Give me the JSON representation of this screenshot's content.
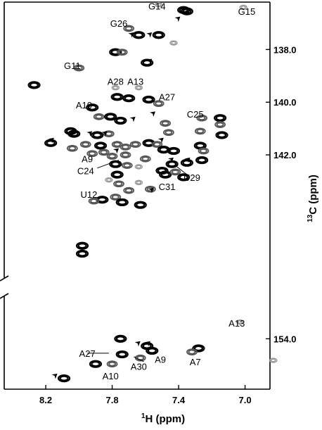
{
  "chart_data": {
    "type": "scatter",
    "title": "",
    "xlabel": {
      "sup": "1",
      "main": "H (ppm)"
    },
    "ylabel": {
      "sup": "13",
      "main": "C (ppm)"
    },
    "x_reversed": true,
    "xlim": [
      8.45,
      6.85
    ],
    "x_ticks": [
      "8.2",
      "7.8",
      "7.4",
      "7.0"
    ],
    "y_broken": true,
    "upper_panel": {
      "ylim": [
        136.2,
        146.7
      ],
      "y_ticks": [
        "138.0",
        "140.0",
        "142.0"
      ]
    },
    "lower_panel": {
      "ylim": [
        152.2,
        156.1
      ],
      "y_ticks": [
        "154.0"
      ]
    },
    "annotations": [
      {
        "text": "G14",
        "x": 7.53,
        "y": 136.35,
        "panel": "upper"
      },
      {
        "text": "G15",
        "x": 6.99,
        "y": 136.55,
        "panel": "upper"
      },
      {
        "text": "G26",
        "x": 7.76,
        "y": 137.0,
        "panel": "upper"
      },
      {
        "text": "G11",
        "x": 8.04,
        "y": 138.6,
        "panel": "upper"
      },
      {
        "text": "A28",
        "x": 7.78,
        "y": 139.2,
        "panel": "upper"
      },
      {
        "text": "A13",
        "x": 7.66,
        "y": 139.2,
        "panel": "upper"
      },
      {
        "text": "A27",
        "x": 7.47,
        "y": 139.8,
        "panel": "upper"
      },
      {
        "text": "A10",
        "x": 7.97,
        "y": 140.1,
        "panel": "upper"
      },
      {
        "text": "C25",
        "x": 7.3,
        "y": 140.45,
        "panel": "upper"
      },
      {
        "text": "A9",
        "x": 7.95,
        "y": 142.15,
        "panel": "upper"
      },
      {
        "text": "C24",
        "x": 7.96,
        "y": 142.6,
        "panel": "upper"
      },
      {
        "text": "U29",
        "x": 7.32,
        "y": 142.85,
        "panel": "upper"
      },
      {
        "text": "U12",
        "x": 7.94,
        "y": 143.5,
        "panel": "upper"
      },
      {
        "text": "C31",
        "x": 7.47,
        "y": 143.2,
        "panel": "upper"
      },
      {
        "text": "A13",
        "x": 7.05,
        "y": 153.35,
        "panel": "lower"
      },
      {
        "text": "A27",
        "x": 7.95,
        "y": 154.6,
        "panel": "lower"
      },
      {
        "text": "A9",
        "x": 7.51,
        "y": 154.85,
        "panel": "lower"
      },
      {
        "text": "A30",
        "x": 7.64,
        "y": 155.15,
        "panel": "lower"
      },
      {
        "text": "A7",
        "x": 7.3,
        "y": 154.95,
        "panel": "lower"
      },
      {
        "text": "A10",
        "x": 7.81,
        "y": 155.55,
        "panel": "lower"
      }
    ],
    "peaks": [
      {
        "x": 7.52,
        "y": 136.3,
        "panel": "upper",
        "intensity": "weak"
      },
      {
        "x": 7.37,
        "y": 136.5,
        "panel": "upper",
        "intensity": "strong"
      },
      {
        "x": 7.35,
        "y": 136.55,
        "panel": "upper",
        "intensity": "strong"
      },
      {
        "x": 7.01,
        "y": 136.4,
        "panel": "upper",
        "intensity": "weak"
      },
      {
        "x": 7.7,
        "y": 137.2,
        "panel": "upper",
        "intensity": "medium"
      },
      {
        "x": 7.64,
        "y": 137.45,
        "panel": "upper",
        "intensity": "strong"
      },
      {
        "x": 7.52,
        "y": 137.45,
        "panel": "upper",
        "intensity": "strong"
      },
      {
        "x": 7.43,
        "y": 137.75,
        "panel": "upper",
        "intensity": "weak"
      },
      {
        "x": 7.78,
        "y": 138.1,
        "panel": "upper",
        "intensity": "strong"
      },
      {
        "x": 7.74,
        "y": 138.1,
        "panel": "upper",
        "intensity": "medium"
      },
      {
        "x": 7.59,
        "y": 138.5,
        "panel": "upper",
        "intensity": "strong"
      },
      {
        "x": 8.0,
        "y": 138.7,
        "panel": "upper",
        "intensity": "medium"
      },
      {
        "x": 8.27,
        "y": 139.35,
        "panel": "upper",
        "intensity": "strong"
      },
      {
        "x": 7.78,
        "y": 139.45,
        "panel": "upper",
        "intensity": "weak"
      },
      {
        "x": 7.77,
        "y": 139.8,
        "panel": "upper",
        "intensity": "strong"
      },
      {
        "x": 7.7,
        "y": 139.85,
        "panel": "upper",
        "intensity": "strong"
      },
      {
        "x": 7.64,
        "y": 139.45,
        "panel": "upper",
        "intensity": "weak"
      },
      {
        "x": 7.58,
        "y": 139.9,
        "panel": "upper",
        "intensity": "strong"
      },
      {
        "x": 7.52,
        "y": 140.05,
        "panel": "upper",
        "intensity": "medium"
      },
      {
        "x": 7.92,
        "y": 140.2,
        "panel": "upper",
        "intensity": "strong"
      },
      {
        "x": 7.88,
        "y": 140.55,
        "panel": "upper",
        "intensity": "medium"
      },
      {
        "x": 7.81,
        "y": 140.55,
        "panel": "upper",
        "intensity": "strong"
      },
      {
        "x": 7.75,
        "y": 140.7,
        "panel": "upper",
        "intensity": "strong"
      },
      {
        "x": 7.48,
        "y": 140.8,
        "panel": "upper",
        "intensity": "medium"
      },
      {
        "x": 7.26,
        "y": 140.6,
        "panel": "upper",
        "intensity": "medium"
      },
      {
        "x": 7.15,
        "y": 140.6,
        "panel": "upper",
        "intensity": "strong"
      },
      {
        "x": 7.15,
        "y": 140.85,
        "panel": "upper",
        "intensity": "medium"
      },
      {
        "x": 8.05,
        "y": 141.1,
        "panel": "upper",
        "intensity": "strong"
      },
      {
        "x": 8.03,
        "y": 141.2,
        "panel": "upper",
        "intensity": "strong"
      },
      {
        "x": 7.89,
        "y": 141.25,
        "panel": "upper",
        "intensity": "strong"
      },
      {
        "x": 7.82,
        "y": 141.2,
        "panel": "upper",
        "intensity": "medium"
      },
      {
        "x": 7.46,
        "y": 141.15,
        "panel": "upper",
        "intensity": "medium"
      },
      {
        "x": 7.27,
        "y": 141.1,
        "panel": "upper",
        "intensity": "medium"
      },
      {
        "x": 7.14,
        "y": 141.25,
        "panel": "upper",
        "intensity": "strong"
      },
      {
        "x": 8.17,
        "y": 141.55,
        "panel": "upper",
        "intensity": "strong"
      },
      {
        "x": 8.04,
        "y": 141.75,
        "panel": "upper",
        "intensity": "medium"
      },
      {
        "x": 7.96,
        "y": 141.6,
        "panel": "upper",
        "intensity": "medium"
      },
      {
        "x": 7.87,
        "y": 141.65,
        "panel": "upper",
        "intensity": "strong"
      },
      {
        "x": 7.85,
        "y": 141.9,
        "panel": "upper",
        "intensity": "medium"
      },
      {
        "x": 7.77,
        "y": 141.6,
        "panel": "upper",
        "intensity": "medium"
      },
      {
        "x": 7.72,
        "y": 141.7,
        "panel": "upper",
        "intensity": "medium"
      },
      {
        "x": 7.66,
        "y": 141.6,
        "panel": "upper",
        "intensity": "medium"
      },
      {
        "x": 7.58,
        "y": 141.55,
        "panel": "upper",
        "intensity": "strong"
      },
      {
        "x": 7.53,
        "y": 141.6,
        "panel": "upper",
        "intensity": "medium"
      },
      {
        "x": 7.49,
        "y": 141.8,
        "panel": "upper",
        "intensity": "strong"
      },
      {
        "x": 7.43,
        "y": 141.85,
        "panel": "upper",
        "intensity": "strong"
      },
      {
        "x": 7.27,
        "y": 141.65,
        "panel": "upper",
        "intensity": "strong"
      },
      {
        "x": 7.25,
        "y": 141.85,
        "panel": "upper",
        "intensity": "medium"
      },
      {
        "x": 7.92,
        "y": 141.95,
        "panel": "upper",
        "intensity": "medium"
      },
      {
        "x": 7.8,
        "y": 142.05,
        "panel": "upper",
        "intensity": "medium"
      },
      {
        "x": 7.72,
        "y": 142.0,
        "panel": "upper",
        "intensity": "medium"
      },
      {
        "x": 7.6,
        "y": 142.15,
        "panel": "upper",
        "intensity": "medium"
      },
      {
        "x": 7.44,
        "y": 142.35,
        "panel": "upper",
        "intensity": "strong"
      },
      {
        "x": 7.35,
        "y": 142.3,
        "panel": "upper",
        "intensity": "strong"
      },
      {
        "x": 7.26,
        "y": 142.2,
        "panel": "upper",
        "intensity": "strong"
      },
      {
        "x": 7.78,
        "y": 142.35,
        "panel": "upper",
        "intensity": "strong"
      },
      {
        "x": 7.71,
        "y": 142.4,
        "panel": "upper",
        "intensity": "medium"
      },
      {
        "x": 7.64,
        "y": 142.45,
        "panel": "upper",
        "intensity": "weak"
      },
      {
        "x": 7.5,
        "y": 142.6,
        "panel": "upper",
        "intensity": "strong"
      },
      {
        "x": 7.48,
        "y": 142.75,
        "panel": "upper",
        "intensity": "strong"
      },
      {
        "x": 7.42,
        "y": 142.65,
        "panel": "upper",
        "intensity": "medium"
      },
      {
        "x": 7.37,
        "y": 142.85,
        "panel": "upper",
        "intensity": "strong"
      },
      {
        "x": 7.77,
        "y": 142.75,
        "panel": "upper",
        "intensity": "strong"
      },
      {
        "x": 7.82,
        "y": 142.95,
        "panel": "upper",
        "intensity": "weak"
      },
      {
        "x": 7.76,
        "y": 143.1,
        "panel": "upper",
        "intensity": "medium"
      },
      {
        "x": 7.64,
        "y": 143.05,
        "panel": "upper",
        "intensity": "weak"
      },
      {
        "x": 7.57,
        "y": 143.3,
        "panel": "upper",
        "intensity": "medium"
      },
      {
        "x": 7.7,
        "y": 143.35,
        "panel": "upper",
        "intensity": "medium"
      },
      {
        "x": 7.78,
        "y": 143.6,
        "panel": "upper",
        "intensity": "medium"
      },
      {
        "x": 7.86,
        "y": 143.7,
        "panel": "upper",
        "intensity": "strong"
      },
      {
        "x": 7.91,
        "y": 143.75,
        "panel": "upper",
        "intensity": "medium"
      },
      {
        "x": 7.74,
        "y": 143.8,
        "panel": "upper",
        "intensity": "strong"
      },
      {
        "x": 7.63,
        "y": 143.9,
        "panel": "upper",
        "intensity": "strong"
      },
      {
        "x": 7.98,
        "y": 145.45,
        "panel": "upper",
        "intensity": "strong"
      },
      {
        "x": 7.98,
        "y": 145.75,
        "panel": "upper",
        "intensity": "strong"
      },
      {
        "x": 7.03,
        "y": 153.3,
        "panel": "lower",
        "intensity": "weak"
      },
      {
        "x": 7.75,
        "y": 154.0,
        "panel": "lower",
        "intensity": "strong"
      },
      {
        "x": 7.59,
        "y": 154.3,
        "panel": "lower",
        "intensity": "strong"
      },
      {
        "x": 7.56,
        "y": 154.5,
        "panel": "lower",
        "intensity": "strong"
      },
      {
        "x": 7.28,
        "y": 154.4,
        "panel": "lower",
        "intensity": "strong"
      },
      {
        "x": 7.32,
        "y": 154.55,
        "panel": "lower",
        "intensity": "medium"
      },
      {
        "x": 7.74,
        "y": 154.65,
        "panel": "lower",
        "intensity": "strong"
      },
      {
        "x": 7.63,
        "y": 154.8,
        "panel": "lower",
        "intensity": "medium"
      },
      {
        "x": 7.9,
        "y": 155.05,
        "panel": "lower",
        "intensity": "strong"
      },
      {
        "x": 7.8,
        "y": 155.05,
        "panel": "lower",
        "intensity": "medium"
      },
      {
        "x": 8.09,
        "y": 155.65,
        "panel": "lower",
        "intensity": "strong"
      },
      {
        "x": 6.83,
        "y": 154.9,
        "panel": "lower",
        "intensity": "weak"
      }
    ],
    "arrows": [
      {
        "x": 7.67,
        "y": 137.35,
        "panel": "upper"
      },
      {
        "x": 7.56,
        "y": 137.35,
        "panel": "upper"
      },
      {
        "x": 7.39,
        "y": 136.75,
        "panel": "upper"
      },
      {
        "x": 7.56,
        "y": 138.35,
        "panel": "upper"
      },
      {
        "x": 7.54,
        "y": 140.35,
        "panel": "upper"
      },
      {
        "x": 7.66,
        "y": 140.55,
        "panel": "upper"
      },
      {
        "x": 7.83,
        "y": 141.1,
        "panel": "upper"
      },
      {
        "x": 7.92,
        "y": 141.1,
        "panel": "upper"
      },
      {
        "x": 8.15,
        "y": 141.35,
        "panel": "upper"
      },
      {
        "x": 7.76,
        "y": 141.75,
        "panel": "upper"
      },
      {
        "x": 7.49,
        "y": 141.35,
        "panel": "upper"
      },
      {
        "x": 7.43,
        "y": 142.1,
        "panel": "upper"
      },
      {
        "x": 7.33,
        "y": 142.1,
        "panel": "upper"
      },
      {
        "x": 7.55,
        "y": 143.25,
        "panel": "upper"
      },
      {
        "x": 8.13,
        "y": 155.45,
        "panel": "lower"
      },
      {
        "x": 7.63,
        "y": 154.1,
        "panel": "lower"
      },
      {
        "x": 7.57,
        "y": 154.1,
        "panel": "lower"
      }
    ],
    "leader_lines": [
      {
        "from": [
          7.95,
          154.6
        ],
        "to": [
          7.82,
          154.6
        ],
        "panel": "lower"
      },
      {
        "from": [
          7.89,
          142.5
        ],
        "to": [
          7.76,
          142.2
        ],
        "panel": "upper"
      },
      {
        "from": [
          7.35,
          142.75
        ],
        "to": [
          7.41,
          142.45
        ],
        "panel": "upper"
      },
      {
        "from": [
          7.61,
          154.95
        ],
        "to": [
          7.67,
          154.75
        ],
        "panel": "lower"
      }
    ]
  }
}
